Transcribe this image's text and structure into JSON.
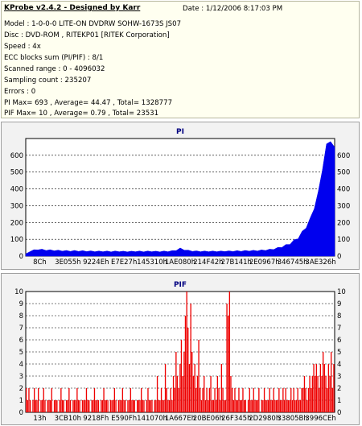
{
  "header": {
    "title": "KProbe v2.4.2 - Designed by Karr",
    "date": "Date : 1/12/2006 8:17:03 PM",
    "model": "Model : 1-0-0-0 LITE-ON DVDRW SOHW-1673S JS07",
    "disc": "Disc : DVD-ROM , RITEKP01 [RITEK Corporation]",
    "speed": "Speed : 4x",
    "ecc": "ECC blocks sum (PI/PIF) : 8/1",
    "range": "Scanned range : 0 - 4096032",
    "sampling": "Sampling count : 235207",
    "errors": "Errors : 0",
    "pi_stats": "PI Max= 693 , Average= 44.47 , Total= 1328777",
    "pif_stats": "PIF Max= 10 , Average= 0.79 , Total= 23531"
  },
  "colors": {
    "pi": "#0000ee",
    "pif": "#ee0000",
    "grid": "#000000",
    "title": "#000080",
    "panel": "#f2f2f2"
  },
  "chart_data": [
    {
      "type": "area",
      "title": "PI",
      "ylim": [
        0,
        700
      ],
      "y_ticks_left": [
        0,
        100,
        200,
        300,
        400,
        500,
        600
      ],
      "y_ticks_right": [
        0,
        100,
        200,
        300,
        400,
        500,
        600
      ],
      "x_tick_labels": [
        "8Ch",
        "3E055h",
        "9224Eh",
        "E7E27h",
        "145310h",
        "1AE080h",
        "214F42h",
        "27B141h",
        "2E0967h",
        "346745h",
        "3AE326h"
      ],
      "grid": "horizontal dashed",
      "series": [
        {
          "values": [
            12,
            28,
            35,
            40,
            38,
            36,
            35,
            34,
            33,
            32,
            31,
            30,
            31,
            30,
            30,
            29,
            29,
            28,
            28,
            28,
            28,
            27,
            28,
            28,
            27,
            27,
            27,
            28,
            28,
            27,
            28,
            28,
            27,
            27,
            28,
            28,
            30,
            35,
            45,
            38,
            33,
            30,
            29,
            28,
            28,
            28,
            28,
            28,
            28,
            29,
            29,
            29,
            30,
            30,
            31,
            32,
            32,
            33,
            34,
            36,
            38,
            42,
            48,
            55,
            64,
            75,
            90,
            110,
            140,
            175,
            220,
            290,
            380,
            520,
            660,
            690,
            640
          ]
        }
      ]
    },
    {
      "type": "bar",
      "title": "PIF",
      "ylim": [
        0,
        10
      ],
      "y_ticks_left": [
        0,
        1,
        2,
        3,
        4,
        5,
        6,
        7,
        8,
        9,
        10
      ],
      "y_ticks_right": [
        0,
        1,
        2,
        3,
        4,
        5,
        6,
        7,
        8,
        9,
        10
      ],
      "x_tick_labels": [
        "13h",
        "3CB10h",
        "9218Fh",
        "E590Fh",
        "141070h",
        "1A667Eh",
        "20BE06h",
        "26F345h",
        "2D2980h",
        "33805Bh",
        "3996CEh"
      ],
      "grid": "horizontal dashed",
      "series": [
        {
          "values": [
            2,
            1,
            2,
            1,
            0,
            1,
            2,
            1,
            1,
            2,
            0,
            1,
            1,
            2,
            1,
            0,
            1,
            1,
            1,
            2,
            0,
            1,
            1,
            1,
            0,
            1,
            2,
            1,
            1,
            0,
            1,
            1,
            2,
            1,
            0,
            1,
            1,
            1,
            2,
            1,
            1,
            0,
            1,
            1,
            1,
            2,
            1,
            1,
            0,
            1,
            1,
            2,
            1,
            1,
            1,
            0,
            1,
            1,
            2,
            1,
            1,
            1,
            0,
            1,
            1,
            1,
            2,
            1,
            0,
            1,
            1,
            1,
            2,
            1,
            1,
            0,
            1,
            1,
            2,
            1,
            1,
            1,
            0,
            1,
            1,
            1,
            2,
            1,
            1,
            0,
            1,
            2,
            1,
            1,
            1,
            0,
            1,
            1,
            3,
            1,
            1,
            2,
            1,
            1,
            4,
            2,
            1,
            1,
            2,
            1,
            3,
            2,
            5,
            3,
            2,
            4,
            6,
            3,
            5,
            8,
            10,
            7,
            4,
            9,
            5,
            3,
            4,
            2,
            3,
            6,
            2,
            1,
            2,
            3,
            1,
            2,
            1,
            2,
            3,
            1,
            1,
            2,
            1,
            3,
            2,
            1,
            4,
            2,
            1,
            1,
            9,
            8,
            10,
            3,
            2,
            1,
            2,
            1,
            1,
            2,
            1,
            1,
            2,
            1,
            1,
            0,
            1,
            2,
            1,
            1,
            2,
            1,
            1,
            1,
            2,
            0,
            1,
            1,
            2,
            1,
            1,
            1,
            2,
            1,
            1,
            2,
            1,
            1,
            1,
            2,
            1,
            1,
            2,
            1,
            2,
            1,
            1,
            1,
            2,
            1,
            2,
            1,
            1,
            2,
            1,
            1,
            2,
            2,
            3,
            2,
            1,
            2,
            3,
            2,
            3,
            4,
            3,
            4,
            3,
            2,
            4,
            3,
            5,
            4,
            3,
            2,
            4,
            3,
            5,
            2,
            4
          ]
        }
      ]
    }
  ]
}
